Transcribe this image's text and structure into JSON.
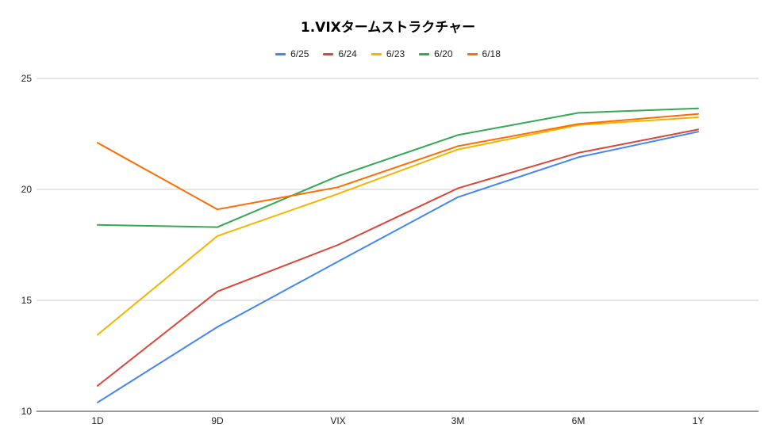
{
  "chart_data": {
    "type": "line",
    "title": "1.VIXタームストラクチャー",
    "xlabel": "",
    "ylabel": "",
    "categories": [
      "1D",
      "9D",
      "VIX",
      "3M",
      "6M",
      "1Y"
    ],
    "ylim": [
      10,
      25
    ],
    "yticks": [
      10,
      15,
      20,
      25
    ],
    "grid": true,
    "legend_position": "top",
    "series": [
      {
        "name": "6/25",
        "color": "#4285f4",
        "values": [
          10.4,
          13.8,
          16.75,
          19.65,
          21.45,
          22.6
        ]
      },
      {
        "name": "6/24",
        "color": "#db4437",
        "values": [
          11.15,
          15.4,
          17.5,
          20.05,
          21.65,
          22.7
        ]
      },
      {
        "name": "6/23",
        "color": "#f4b400",
        "values": [
          13.45,
          17.9,
          19.8,
          21.8,
          22.9,
          23.25
        ]
      },
      {
        "name": "6/20",
        "color": "#34a853",
        "values": [
          18.4,
          18.3,
          20.6,
          22.45,
          23.45,
          23.65
        ]
      },
      {
        "name": "6/18",
        "color": "#ff6d01",
        "values": [
          22.1,
          19.1,
          20.1,
          21.95,
          22.95,
          23.4
        ]
      }
    ]
  }
}
